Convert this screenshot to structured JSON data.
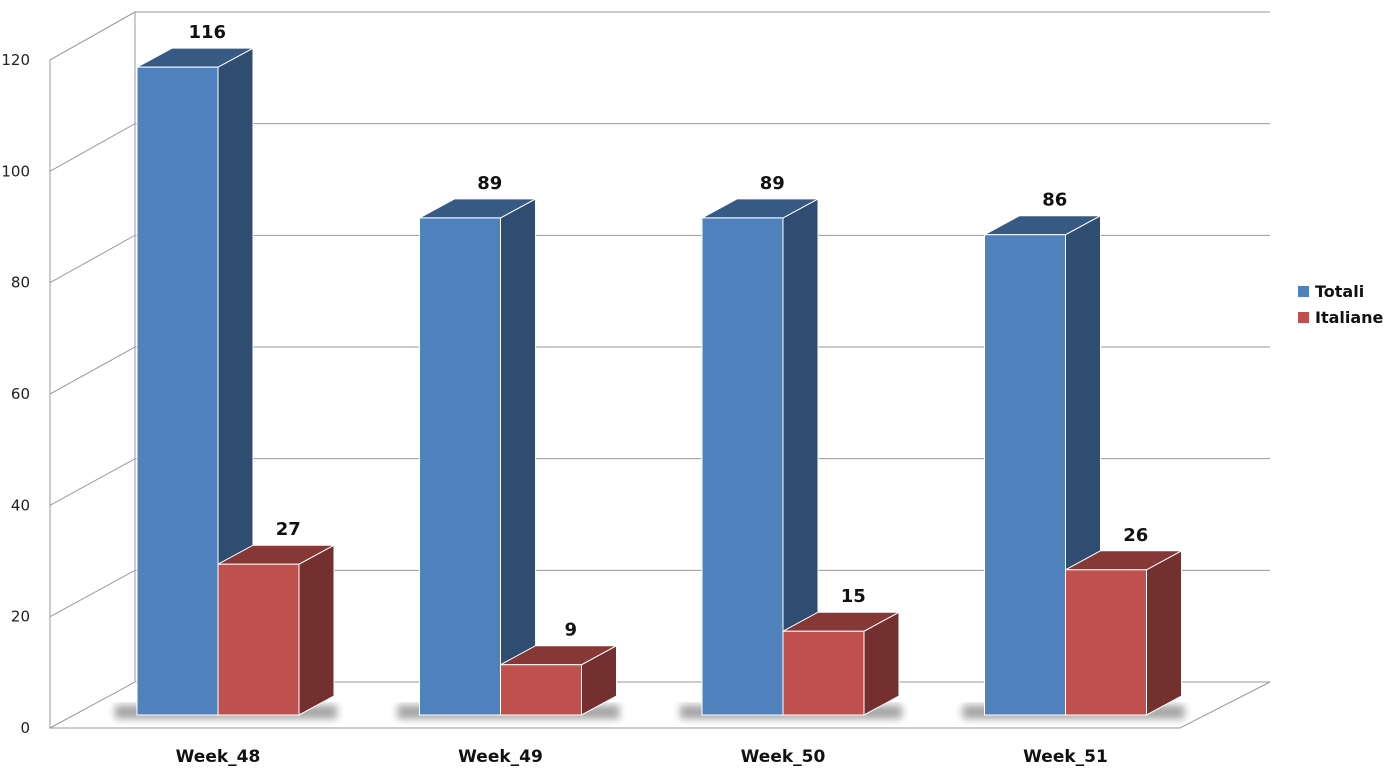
{
  "chart_data": {
    "type": "bar",
    "title": "",
    "xlabel": "",
    "ylabel": "",
    "categories": [
      "Week_48",
      "Week_49",
      "Week_50",
      "Week_51"
    ],
    "series": [
      {
        "name": "Totali",
        "values": [
          116,
          89,
          89,
          86
        ],
        "color": "#4F81BD"
      },
      {
        "name": "Italiane",
        "values": [
          27,
          9,
          15,
          26
        ],
        "color": "#C0504D"
      }
    ],
    "yticks": [
      0,
      20,
      40,
      60,
      80,
      100,
      120
    ],
    "ylim": [
      0,
      120
    ],
    "grid": true,
    "legend": "right",
    "data_labels": true,
    "style": "3d-clustered-column"
  }
}
